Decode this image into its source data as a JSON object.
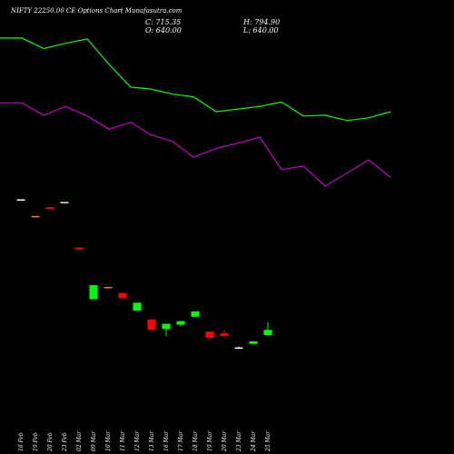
{
  "title": "NIFTY 22250.00 CE Options Chart Munafasutra.com",
  "ohlc": {
    "close_label": "C: 715.35",
    "open_label": "O: 640.00",
    "high_label": "H: 794.90",
    "low_label": "L: 640.00"
  },
  "chart_data": {
    "type": "candlestick",
    "categories": [
      "16 Feb",
      "19 Feb",
      "20 Feb",
      "23 Feb",
      "02 Mar",
      "09 Mar",
      "10 Mar",
      "11 Mar",
      "12 Mar",
      "13 Mar",
      "16 Mar",
      "17 Mar",
      "18 Mar",
      "19 Mar",
      "20 Mar",
      "23 Mar",
      "24 Mar",
      "25 Mar"
    ],
    "y_price_domain": [
      0,
      4300
    ],
    "candles": [
      {
        "open": 2440,
        "close": 2440,
        "high": 2440,
        "low": 2440,
        "color": "#ffffff"
      },
      {
        "open": 2250,
        "close": 2250,
        "high": 2250,
        "low": 2250,
        "color": "#ff6666"
      },
      {
        "open": 2350,
        "close": 2330,
        "high": 2350,
        "low": 2330,
        "color": "#ff0000"
      },
      {
        "open": 2410,
        "close": 2410,
        "high": 2410,
        "low": 2410,
        "color": "#ccffcc"
      },
      {
        "open": 1890,
        "close": 1870,
        "high": 1890,
        "low": 1870,
        "color": "#ff0000"
      },
      {
        "open": 1300,
        "close": 1460,
        "high": 1460,
        "low": 1300,
        "color": "#00ff00"
      },
      {
        "open": 1440,
        "close": 1440,
        "high": 1440,
        "low": 1440,
        "color": "#ff6666"
      },
      {
        "open": 1370,
        "close": 1310,
        "high": 1370,
        "low": 1310,
        "color": "#ff0000"
      },
      {
        "open": 1170,
        "close": 1260,
        "high": 1260,
        "low": 1170,
        "color": "#00ff00"
      },
      {
        "open": 1070,
        "close": 950,
        "high": 1070,
        "low": 950,
        "color": "#ff0000"
      },
      {
        "open": 960,
        "close": 1020,
        "high": 1020,
        "low": 880,
        "color": "#00ff00"
      },
      {
        "open": 1010,
        "close": 1050,
        "high": 1050,
        "low": 990,
        "color": "#00ff00"
      },
      {
        "open": 1100,
        "close": 1160,
        "high": 1160,
        "low": 1100,
        "color": "#00ff00"
      },
      {
        "open": 930,
        "close": 860,
        "high": 930,
        "low": 830,
        "color": "#ff0000"
      },
      {
        "open": 910,
        "close": 880,
        "high": 950,
        "low": 880,
        "color": "#ff0000"
      },
      {
        "open": 750,
        "close": 750,
        "high": 760,
        "low": 740,
        "color": "#ffffff"
      },
      {
        "open": 790,
        "close": 820,
        "high": 820,
        "low": 790,
        "color": "#00ff00"
      },
      {
        "open": 890,
        "close": 950,
        "high": 1040,
        "low": 890,
        "color": "#00ff00"
      }
    ],
    "series": [
      {
        "color": "#00ff00",
        "y_domain": [
          0,
          4300
        ],
        "x": [
          0,
          24,
          48,
          72,
          96,
          120,
          144,
          165,
          190,
          213,
          238,
          262,
          286,
          310,
          334,
          358,
          382,
          406,
          430
        ],
        "values": [
          4280,
          4280,
          4160,
          4220,
          4270,
          3980,
          3720,
          3700,
          3640,
          3610,
          3440,
          3470,
          3500,
          3550,
          3390,
          3400,
          3340,
          3370,
          3440
        ]
      },
      {
        "color": "#c000c0",
        "y_domain": [
          0,
          4300
        ],
        "x": [
          0,
          24,
          48,
          72,
          96,
          120,
          144,
          165,
          190,
          213,
          238,
          262,
          286,
          310,
          334,
          358,
          382,
          406,
          430
        ],
        "values": [
          3540,
          3540,
          3400,
          3500,
          3390,
          3240,
          3320,
          3180,
          3100,
          2920,
          3020,
          3080,
          3150,
          2780,
          2820,
          2590,
          2740,
          2890,
          2690
        ]
      }
    ]
  }
}
